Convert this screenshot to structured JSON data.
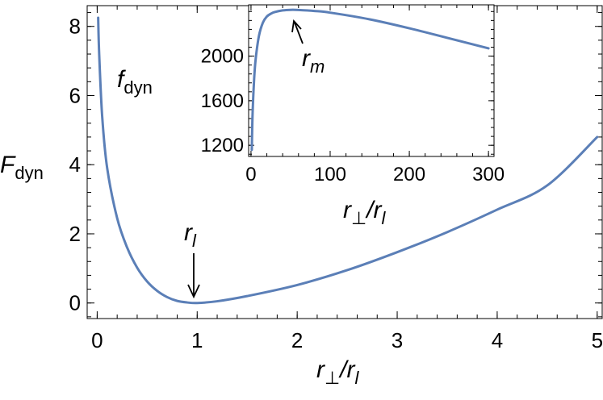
{
  "chart_data": [
    {
      "type": "line",
      "xlabel": {
        "main": "r",
        "sub1": "⊥",
        "slash": "/r",
        "sub2": "l"
      },
      "ylabel": {
        "main": "F",
        "sub": "dyn"
      },
      "xlim": [
        -0.1,
        5.05
      ],
      "ylim": [
        -0.45,
        8.6
      ],
      "x_ticks": [
        0,
        1,
        2,
        3,
        4,
        5
      ],
      "y_ticks": [
        0,
        2,
        4,
        6,
        8
      ],
      "grid": false,
      "series": [
        {
          "color": "#5b7fb7",
          "x": [
            0.01,
            0.02,
            0.05,
            0.1,
            0.2,
            0.3,
            0.4,
            0.5,
            0.6,
            0.7,
            0.8,
            0.9,
            1.0,
            1.2,
            1.5,
            2.0,
            2.5,
            3.0,
            3.5,
            4.0,
            4.5,
            5.0
          ],
          "y": [
            8.25,
            7.2,
            5.4,
            3.9,
            2.45,
            1.6,
            1.02,
            0.62,
            0.35,
            0.17,
            0.06,
            0.015,
            0.0,
            0.05,
            0.2,
            0.52,
            0.95,
            1.47,
            2.05,
            2.7,
            3.4,
            4.8
          ]
        }
      ],
      "annotations": [
        {
          "text_main": "r",
          "text_sub": "l",
          "x": 1.0,
          "y": 0.0
        }
      ]
    },
    {
      "type": "line",
      "title": {
        "main": "f",
        "sub": "dyn"
      },
      "xlabel": {
        "main": "r",
        "sub1": "⊥",
        "slash": "/r",
        "sub2": "l"
      },
      "xlim": [
        -3,
        307
      ],
      "ylim": [
        1100,
        2460
      ],
      "x_ticks": [
        0,
        100,
        200,
        300
      ],
      "y_ticks": [
        1200,
        1600,
        2000
      ],
      "grid": false,
      "series": [
        {
          "color": "#5b7fb7",
          "x": [
            1,
            2,
            4,
            6,
            10,
            15,
            20,
            25,
            30,
            40,
            50,
            60,
            80,
            100,
            150,
            200,
            250,
            300
          ],
          "y": [
            1160,
            1480,
            1800,
            1980,
            2180,
            2300,
            2355,
            2380,
            2395,
            2410,
            2415,
            2414,
            2405,
            2390,
            2330,
            2250,
            2160,
            2070
          ]
        }
      ],
      "annotations": [
        {
          "text_main": "r",
          "text_sub": "m",
          "x": 55,
          "y": 2415
        }
      ]
    }
  ]
}
